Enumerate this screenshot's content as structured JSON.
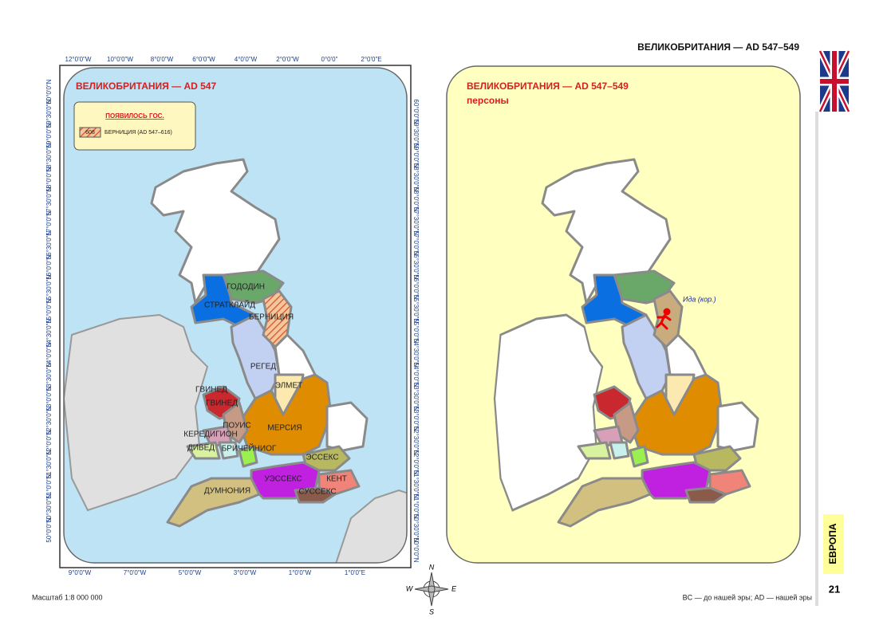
{
  "header": {
    "title": "ВЕЛИКОБРИТАНИЯ — AD 547–549"
  },
  "left_map": {
    "title": "ВЕЛИКОБРИТАНИЯ — AD 547",
    "legend": {
      "heading": "ПОЯВИЛОСЬ ГОС.",
      "badge": "608",
      "item": "БЕРНИЦИЯ (AD 547–616)"
    },
    "regions": [
      "ГОДОДИН",
      "СТРАТКЛАЙД",
      "БЕРНИЦИЯ",
      "РЕГЕД",
      "ЭЛМЕТ",
      "ГВИНЕД",
      "ГВИНЕД",
      "ПОУИС",
      "КЕРЕДИГИОН",
      "ДИВЕД",
      "БРИЧЕЙНИОГ",
      "МЕРСИЯ",
      "ЭССЕКС",
      "УЭССЕКС",
      "КЕНТ",
      "СУССЕКС",
      "ДУМНОНИЯ"
    ],
    "top_lon": [
      "12°0'0\"W",
      "10°0'0\"W",
      "8°0'0\"W",
      "6°0'0\"W",
      "4°0'0\"W",
      "2°0'0\"W",
      "0°0'0\"",
      "2°0'0\"E"
    ],
    "bottom_lon": [
      "9°0'0\"W",
      "7°0'0\"W",
      "5°0'0\"W",
      "3°0'0\"W",
      "1°0'0\"W",
      "1°0'0\"E"
    ],
    "left_lat": [
      "60°0'0\"N",
      "59°30'0\"N",
      "59°0'0\"N",
      "58°30'0\"N",
      "58°0'0\"N",
      "57°30'0\"N",
      "57°0'0\"N",
      "56°30'0\"N",
      "56°0'0\"N",
      "55°30'0\"N",
      "55°0'0\"N",
      "54°30'0\"N",
      "54°0'0\"N",
      "53°30'0\"N",
      "53°0'0\"N",
      "52°30'0\"N",
      "52°0'0\"N",
      "51°30'0\"N",
      "51°0'0\"N",
      "50°30'0\"N",
      "50°0'0\"N"
    ],
    "right_lat": [
      "60°0'0\"N",
      "59°30'0\"N",
      "59°0'0\"N",
      "58°30'0\"N",
      "58°0'0\"N",
      "57°30'0\"N",
      "57°0'0\"N",
      "56°30'0\"N",
      "56°0'0\"N",
      "55°30'0\"N",
      "55°0'0\"N",
      "54°30'0\"N",
      "54°0'0\"N",
      "53°30'0\"N",
      "53°0'0\"N",
      "52°30'0\"N",
      "52°0'0\"N",
      "51°30'0\"N",
      "51°0'0\"N",
      "50°30'0\"N",
      "50°0'0\"N"
    ]
  },
  "right_map": {
    "title": "ВЕЛИКОБРИТАНИЯ — AD 547–549",
    "subtitle": "персоны",
    "person": "Ида (кор.)"
  },
  "compass": [
    "N",
    "W",
    "E",
    "S"
  ],
  "footer": {
    "scale": "Масштаб 1:8 000 000",
    "note": "BC — до нашей эры; AD — нашей эры",
    "section": "ЕВРОПА",
    "page_number": "21"
  }
}
